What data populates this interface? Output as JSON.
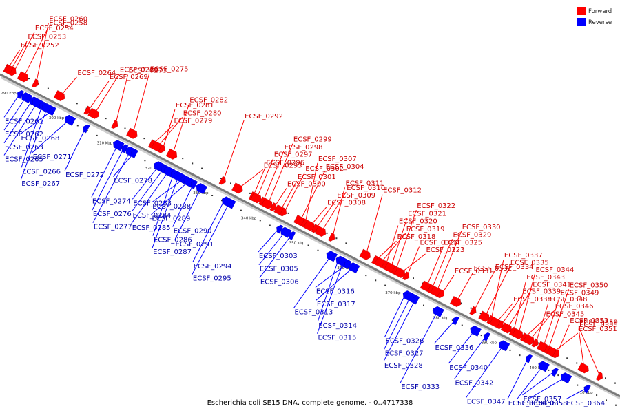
{
  "title": "Escherichia coli SE15 DNA, complete genome. - 0..4717338",
  "legend": [
    {
      "label": "Forward",
      "color": "#ff0000"
    },
    {
      "label": "Reverse",
      "color": "#0000ff"
    }
  ],
  "colors": {
    "forward": "#ff0000",
    "reverse": "#0000ff",
    "forward_label": "#cc0000",
    "reverse_label": "#0000aa",
    "backbone": "#888888"
  },
  "ticks": [
    "290 kbp",
    "300 kbp",
    "310 kbp",
    "320 kbp",
    "330 kbp",
    "340 kbp",
    "350 kbp",
    "360 kbp",
    "370 kbp",
    "380 kbp",
    "390 kbp",
    "400 kbp",
    "410 kbp"
  ],
  "forward_genes": [
    {
      "name": "ECSF_0252",
      "pos": 0.006
    },
    {
      "name": "ECSF_0253",
      "pos": 0.011
    },
    {
      "name": "ECSF_0254",
      "pos": 0.016
    },
    {
      "name": "ECSF_0258",
      "pos": 0.032
    },
    {
      "name": "ECSF_0260",
      "pos": 0.052
    },
    {
      "name": "ECSF_0264",
      "pos": 0.091
    },
    {
      "name": "ECSF_0269",
      "pos": 0.136
    },
    {
      "name": "ECSF_0270",
      "pos": 0.146
    },
    {
      "name": "ECSF_0273",
      "pos": 0.18
    },
    {
      "name": "ECSF_0275",
      "pos": 0.208
    },
    {
      "name": "ECSF_0279",
      "pos": 0.24
    },
    {
      "name": "ECSF_0280",
      "pos": 0.248
    },
    {
      "name": "ECSF_0281",
      "pos": 0.256
    },
    {
      "name": "ECSF_0282",
      "pos": 0.272
    },
    {
      "name": "ECSF_0292",
      "pos": 0.354
    },
    {
      "name": "ECSF_0293",
      "pos": 0.378
    },
    {
      "name": "ECSF_0296",
      "pos": 0.402
    },
    {
      "name": "ECSF_0297",
      "pos": 0.408
    },
    {
      "name": "ECSF_0298",
      "pos": 0.418
    },
    {
      "name": "ECSF_0299",
      "pos": 0.426
    },
    {
      "name": "ECSF_0300",
      "pos": 0.436
    },
    {
      "name": "ECSF_0301",
      "pos": 0.446
    },
    {
      "name": "ECSF_0302",
      "pos": 0.452
    },
    {
      "name": "ECSF_0304",
      "pos": 0.478
    },
    {
      "name": "ECSF_0307",
      "pos": 0.486
    },
    {
      "name": "ECSF_0308",
      "pos": 0.494
    },
    {
      "name": "ECSF_0309",
      "pos": 0.503
    },
    {
      "name": "ECSF_0310",
      "pos": 0.512
    },
    {
      "name": "ECSF_0311",
      "pos": 0.53
    },
    {
      "name": "ECSF_0312",
      "pos": 0.584
    },
    {
      "name": "ECSF_0318",
      "pos": 0.6
    },
    {
      "name": "ECSF_0319",
      "pos": 0.608
    },
    {
      "name": "ECSF_0320",
      "pos": 0.616
    },
    {
      "name": "ECSF_0321",
      "pos": 0.624
    },
    {
      "name": "ECSF_0322",
      "pos": 0.632
    },
    {
      "name": "ECSF_0323",
      "pos": 0.64
    },
    {
      "name": "ECSF_0324",
      "pos": 0.65
    },
    {
      "name": "ECSF_0325",
      "pos": 0.682
    },
    {
      "name": "ECSF_0329",
      "pos": 0.69
    },
    {
      "name": "ECSF_0330",
      "pos": 0.698
    },
    {
      "name": "ECSF_0331",
      "pos": 0.706
    },
    {
      "name": "ECSF_0332",
      "pos": 0.73
    },
    {
      "name": "ECSF_0334",
      "pos": 0.758
    },
    {
      "name": "ECSF_0335",
      "pos": 0.776
    },
    {
      "name": "ECSF_0337",
      "pos": 0.786
    },
    {
      "name": "ECSF_0338",
      "pos": 0.794
    },
    {
      "name": "ECSF_0339",
      "pos": 0.802
    },
    {
      "name": "ECSF_0341",
      "pos": 0.812
    },
    {
      "name": "ECSF_0343",
      "pos": 0.822
    },
    {
      "name": "ECSF_0344",
      "pos": 0.83
    },
    {
      "name": "ECSF_0345",
      "pos": 0.84
    },
    {
      "name": "ECSF_0346",
      "pos": 0.848
    },
    {
      "name": "ECSF_0348",
      "pos": 0.858
    },
    {
      "name": "ECSF_0349",
      "pos": 0.87
    },
    {
      "name": "ECSF_0350",
      "pos": 0.878
    },
    {
      "name": "ECSF_0351",
      "pos": 0.886
    },
    {
      "name": "ECSF_0353",
      "pos": 0.892
    },
    {
      "name": "ECSF_0355",
      "pos": 0.936
    },
    {
      "name": "ECSF_0359",
      "pos": 0.962
    }
  ],
  "reverse_genes": [
    {
      "name": "ECSF_0261",
      "pos": 0.038
    },
    {
      "name": "ECSF_0262",
      "pos": 0.048
    },
    {
      "name": "ECSF_0263",
      "pos": 0.058
    },
    {
      "name": "ECSF_0265",
      "pos": 0.066
    },
    {
      "name": "ECSF_0266",
      "pos": 0.074
    },
    {
      "name": "ECSF_0267",
      "pos": 0.082
    },
    {
      "name": "ECSF_0268",
      "pos": 0.09
    },
    {
      "name": "ECSF_0271",
      "pos": 0.118
    },
    {
      "name": "ECSF_0272",
      "pos": 0.144
    },
    {
      "name": "ECSF_0274",
      "pos": 0.196
    },
    {
      "name": "ECSF_0276",
      "pos": 0.206
    },
    {
      "name": "ECSF_0277",
      "pos": 0.216
    },
    {
      "name": "ECSF_0278",
      "pos": 0.222
    },
    {
      "name": "ECSF_0283",
      "pos": 0.262
    },
    {
      "name": "ECSF_0284",
      "pos": 0.27
    },
    {
      "name": "ECSF_0285",
      "pos": 0.278
    },
    {
      "name": "ECSF_0286",
      "pos": 0.286
    },
    {
      "name": "ECSF_0287",
      "pos": 0.294
    },
    {
      "name": "ECSF_0288",
      "pos": 0.302
    },
    {
      "name": "ECSF_0289",
      "pos": 0.31
    },
    {
      "name": "ECSF_0290",
      "pos": 0.318
    },
    {
      "name": "ECSF_0291",
      "pos": 0.33
    },
    {
      "name": "ECSF_0294",
      "pos": 0.368
    },
    {
      "name": "ECSF_0295",
      "pos": 0.376
    },
    {
      "name": "ECSF_0303",
      "pos": 0.456
    },
    {
      "name": "ECSF_0305",
      "pos": 0.466
    },
    {
      "name": "ECSF_0306",
      "pos": 0.476
    },
    {
      "name": "ECSF_0313",
      "pos": 0.54
    },
    {
      "name": "ECSF_0314",
      "pos": 0.552
    },
    {
      "name": "ECSF_0315",
      "pos": 0.56
    },
    {
      "name": "ECSF_0316",
      "pos": 0.566
    },
    {
      "name": "ECSF_0317",
      "pos": 0.576
    },
    {
      "name": "ECSF_0326",
      "pos": 0.66
    },
    {
      "name": "ECSF_0327",
      "pos": 0.668
    },
    {
      "name": "ECSF_0328",
      "pos": 0.676
    },
    {
      "name": "ECSF_0333",
      "pos": 0.712
    },
    {
      "name": "ECSF_0336",
      "pos": 0.74
    },
    {
      "name": "ECSF_0340",
      "pos": 0.772
    },
    {
      "name": "ECSF_0342",
      "pos": 0.79
    },
    {
      "name": "ECSF_0347",
      "pos": 0.818
    },
    {
      "name": "ECSF_0354",
      "pos": 0.858
    },
    {
      "name": "ECSF_0356",
      "pos": 0.882
    },
    {
      "name": "ECSF_0357",
      "pos": 0.9
    },
    {
      "name": "ECSF_0358",
      "pos": 0.918
    },
    {
      "name": "ECSF_0364",
      "pos": 0.952
    }
  ]
}
